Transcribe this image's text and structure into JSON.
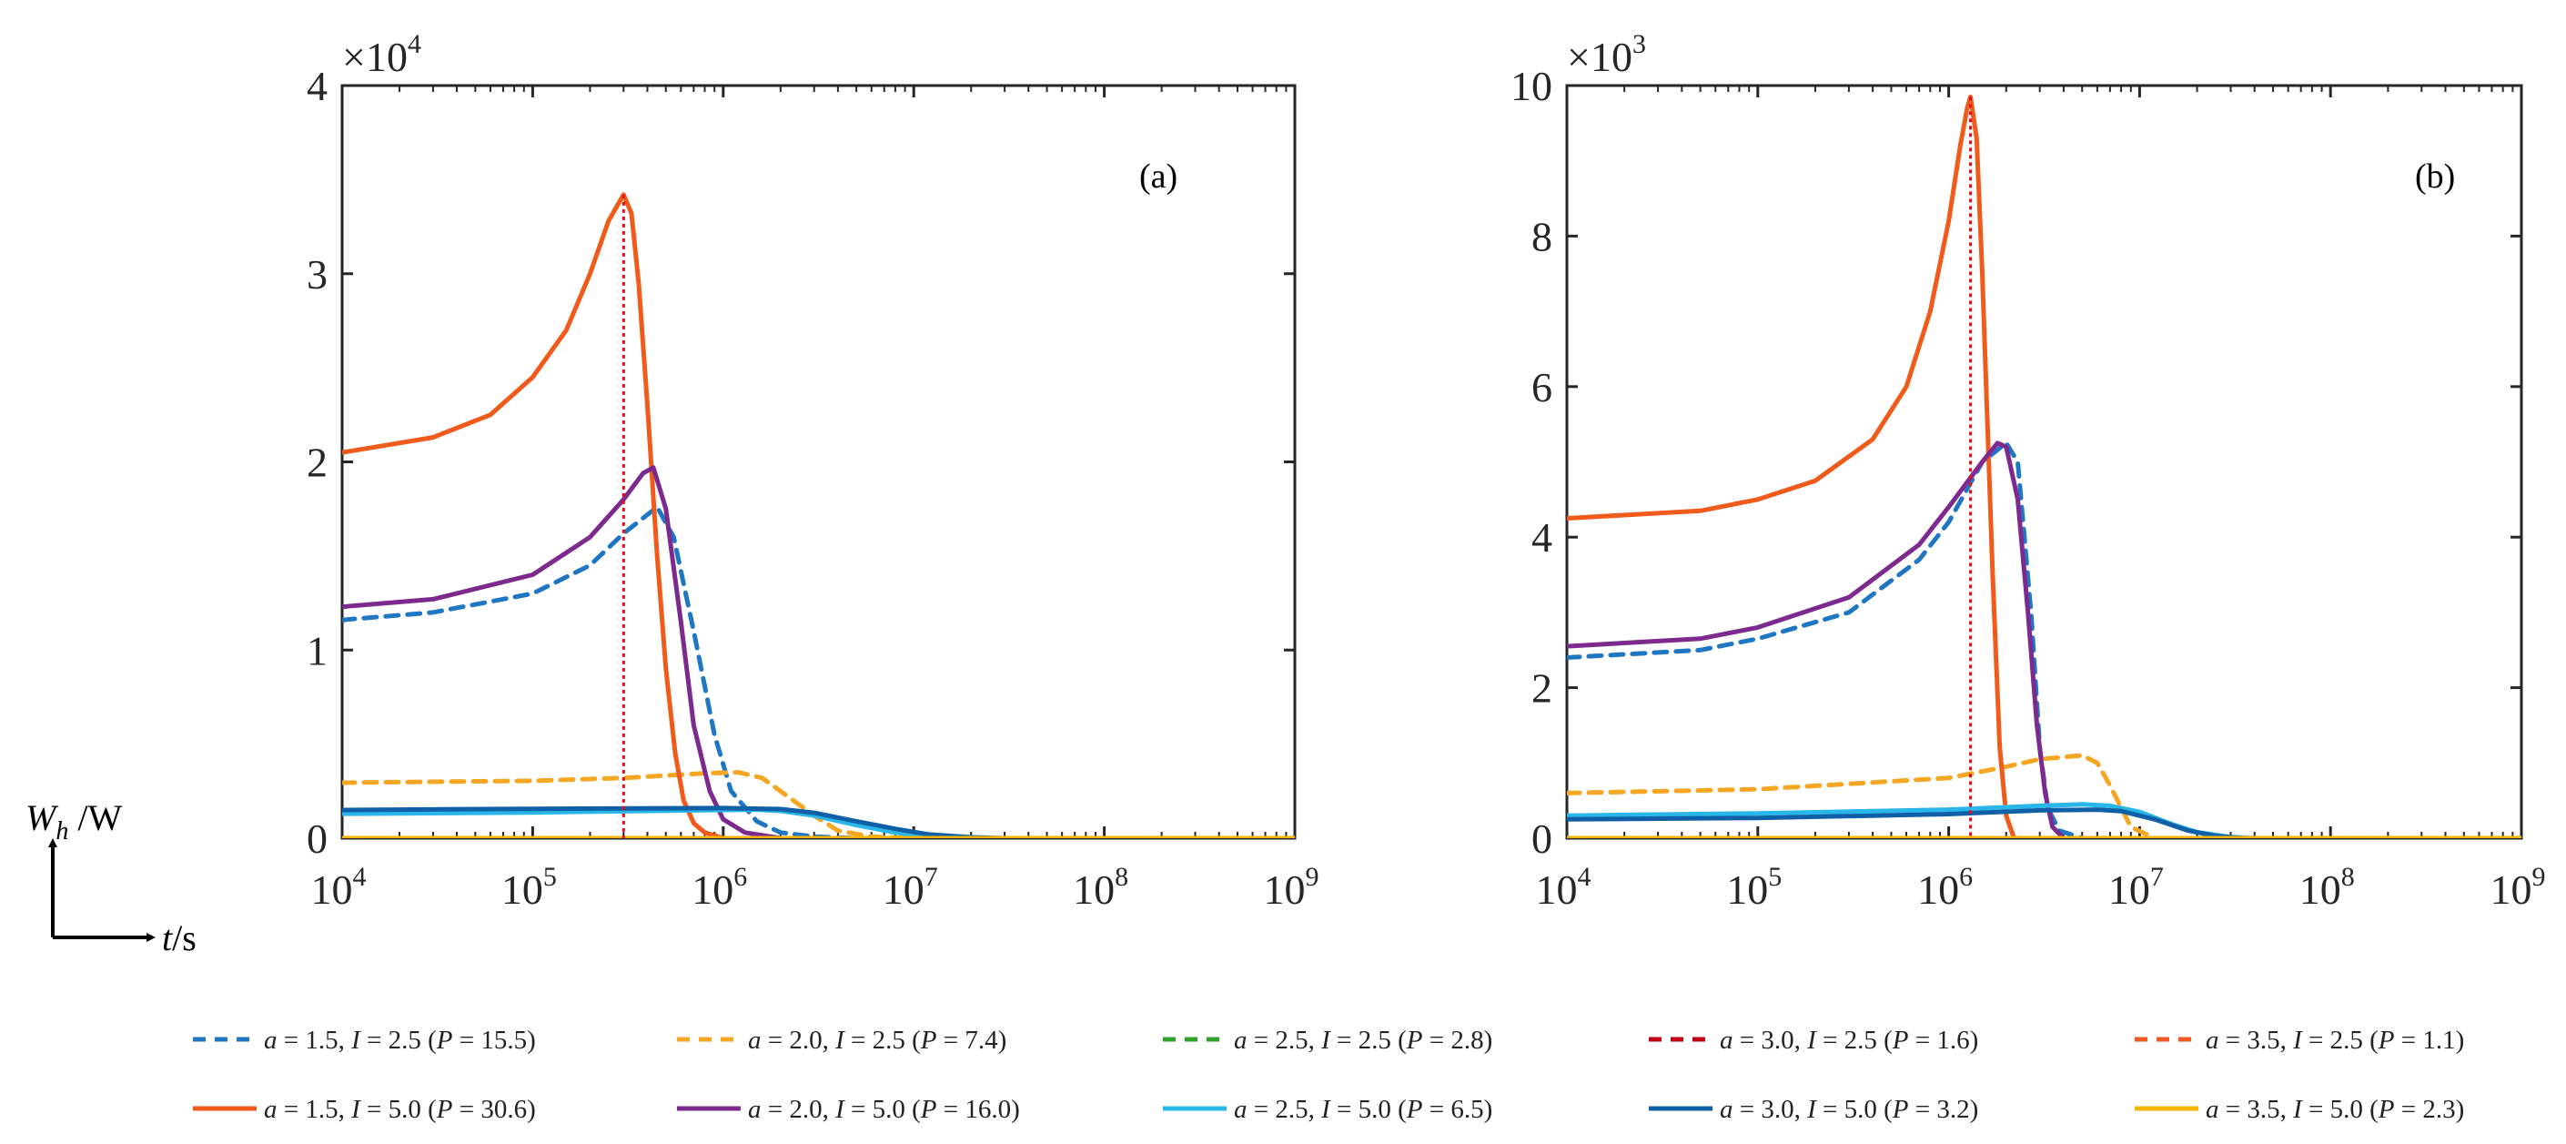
{
  "chart_data": {
    "type": "line",
    "x_axis": {
      "scale": "log",
      "xlim": [
        10000,
        1000000000
      ],
      "tick_values": [
        10000,
        100000,
        1000000,
        10000000,
        100000000,
        1000000000
      ],
      "tick_labels": [
        {
          "base": "10",
          "exp": "4"
        },
        {
          "base": "10",
          "exp": "5"
        },
        {
          "base": "10",
          "exp": "6"
        },
        {
          "base": "10",
          "exp": "7"
        },
        {
          "base": "10",
          "exp": "8"
        },
        {
          "base": "10",
          "exp": "9"
        }
      ]
    },
    "axis_labels": {
      "y": {
        "main": "W",
        "sub": "h",
        "unit": " /W"
      },
      "x": {
        "main": "t",
        "unit": "/s"
      }
    },
    "series_styles": [
      {
        "name": "a = 1.5, I = 2.5 (P = 15.5)",
        "color": "#1f77c4",
        "dash": true
      },
      {
        "name": "a = 2.0, I = 2.5 (P = 7.4)",
        "color": "#f5a623",
        "dash": true
      },
      {
        "name": "a = 2.5, I = 2.5 (P = 2.8)",
        "color": "#33a02c",
        "dash": true
      },
      {
        "name": "a = 3.0, I = 2.5 (P = 1.6)",
        "color": "#c00010",
        "dash": true
      },
      {
        "name": "a = 3.5, I = 2.5 (P = 1.1)",
        "color": "#f05a28",
        "dash": true
      },
      {
        "name": "a = 1.5, I = 5.0 (P = 30.6)",
        "color": "#f05a1a",
        "dash": false
      },
      {
        "name": "a = 2.0, I = 5.0 (P = 16.0)",
        "color": "#7d2a8e",
        "dash": false
      },
      {
        "name": "a = 2.5, I = 5.0 (P = 6.5)",
        "color": "#29b6e8",
        "dash": false
      },
      {
        "name": "a = 3.0, I = 5.0 (P = 3.2)",
        "color": "#1060a8",
        "dash": false
      },
      {
        "name": "a = 3.5, I = 5.0 (P = 2.3)",
        "color": "#f7b500",
        "dash": false
      }
    ],
    "legend": {
      "placement": "bottom",
      "rows": [
        [
          {
            "a": "1.5",
            "I": "2.5",
            "P": "15.5"
          },
          {
            "a": "2.0",
            "I": "2.5",
            "P": "7.4"
          },
          {
            "a": "2.5",
            "I": "2.5",
            "P": "2.8"
          },
          {
            "a": "3.0",
            "I": "2.5",
            "P": "1.6"
          },
          {
            "a": "3.5",
            "I": "2.5",
            "P": "1.1"
          }
        ],
        [
          {
            "a": "1.5",
            "I": "5.0",
            "P": "30.6"
          },
          {
            "a": "2.0",
            "I": "5.0",
            "P": "16.0"
          },
          {
            "a": "2.5",
            "I": "5.0",
            "P": "6.5"
          },
          {
            "a": "3.0",
            "I": "5.0",
            "P": "3.2"
          },
          {
            "a": "3.5",
            "I": "5.0",
            "P": "2.3"
          }
        ]
      ]
    },
    "panels": [
      {
        "label": "(a)",
        "ylim": [
          0,
          40000
        ],
        "y_ticks": [
          0,
          10000,
          20000,
          30000,
          40000
        ],
        "y_tick_labels": [
          "0",
          "1",
          "2",
          "3",
          "4"
        ],
        "y_multiplier": {
          "base": "×10",
          "exp": "4"
        },
        "marker_line": {
          "x": 300000,
          "y": 34200,
          "color": "#e0101a"
        },
        "series": [
          {
            "name": "a = 1.5, I = 2.5 (P = 15.5)",
            "x": [
              10000,
              30000,
              100000,
              200000,
              300000,
              450000,
              550000,
              700000,
              900000,
              1100000,
              1500000,
              2000000,
              3000000,
              5000000
            ],
            "y": [
              11600,
              12000,
              13000,
              14500,
              16200,
              17600,
              16000,
              11000,
              5500,
              2500,
              900,
              300,
              80,
              0
            ]
          },
          {
            "name": "a = 2.0, I = 2.5 (P = 7.4)",
            "x": [
              10000,
              100000,
              300000,
              800000,
              1200000,
              1600000,
              2000000,
              3000000,
              4000000,
              6000000,
              10000000
            ],
            "y": [
              2950,
              3050,
              3200,
              3450,
              3500,
              3200,
              2500,
              1200,
              400,
              80,
              0
            ]
          },
          {
            "name": "a = 2.5, I = 2.5 (P = 2.8)",
            "x": [
              10000,
              1000000,
              5000000,
              20000000
            ],
            "y": [
              0,
              0,
              0,
              0
            ]
          },
          {
            "name": "a = 3.0, I = 2.5 (P = 1.6)",
            "x": [
              10000,
              1000000,
              5000000,
              20000000
            ],
            "y": [
              0,
              0,
              0,
              0
            ]
          },
          {
            "name": "a = 3.5, I = 2.5 (P = 1.1)",
            "x": [
              10000,
              1000000,
              5000000,
              20000000
            ],
            "y": [
              0,
              0,
              0,
              0
            ]
          },
          {
            "name": "a = 1.5, I = 5.0 (P = 30.6)",
            "x": [
              10000,
              30000,
              60000,
              100000,
              150000,
              200000,
              250000,
              300000,
              330000,
              360000,
              400000,
              450000,
              500000,
              560000,
              620000,
              700000,
              800000,
              1000000
            ],
            "y": [
              20500,
              21300,
              22500,
              24500,
              27000,
              30000,
              32800,
              34200,
              33200,
              29500,
              23000,
              15000,
              9000,
              4500,
              2000,
              800,
              300,
              0
            ]
          },
          {
            "name": "a = 2.0, I = 5.0 (P = 16.0)",
            "x": [
              10000,
              30000,
              100000,
              200000,
              300000,
              380000,
              430000,
              500000,
              600000,
              700000,
              850000,
              1000000,
              1300000,
              2000000
            ],
            "y": [
              12300,
              12700,
              14000,
              16000,
              18000,
              19400,
              19700,
              17500,
              11500,
              6000,
              2500,
              1000,
              300,
              0
            ]
          },
          {
            "name": "a = 2.5, I = 5.0 (P = 6.5)",
            "x": [
              10000,
              100000,
              1000000,
              1500000,
              2000000,
              3000000,
              5000000,
              8000000,
              12000000,
              20000000,
              30000000
            ],
            "y": [
              1300,
              1370,
              1500,
              1520,
              1450,
              1200,
              700,
              300,
              100,
              20,
              0
            ]
          },
          {
            "name": "a = 3.0, I = 5.0 (P = 3.2)",
            "x": [
              10000,
              100000,
              1000000,
              2000000,
              3000000,
              5000000,
              8000000,
              12000000,
              20000000,
              30000000
            ],
            "y": [
              1500,
              1560,
              1600,
              1550,
              1350,
              900,
              500,
              200,
              50,
              0
            ]
          },
          {
            "name": "a = 3.5, I = 5.0 (P = 2.3)",
            "x": [
              10000,
              1000000,
              10000000,
              100000000,
              1000000000
            ],
            "y": [
              0,
              0,
              0,
              0,
              0
            ]
          }
        ]
      },
      {
        "label": "(b)",
        "ylim": [
          0,
          10000
        ],
        "y_ticks": [
          0,
          2000,
          4000,
          6000,
          8000,
          10000
        ],
        "y_tick_labels": [
          "0",
          "2",
          "4",
          "6",
          "8",
          "10"
        ],
        "y_multiplier": {
          "base": "×10",
          "exp": "3"
        },
        "marker_line": {
          "x": 1300000,
          "y": 9850,
          "color": "#e0101a"
        },
        "series": [
          {
            "name": "a = 1.5, I = 2.5 (P = 15.5)",
            "x": [
              10000,
              50000,
              100000,
              300000,
              700000,
              1000000,
              1500000,
              2000000,
              2300000,
              2700000,
              3000000,
              3300000,
              3800000,
              5000000
            ],
            "y": [
              2400,
              2500,
              2650,
              3000,
              3700,
              4200,
              5000,
              5250,
              5000,
              3000,
              1200,
              400,
              100,
              0
            ]
          },
          {
            "name": "a = 2.0, I = 2.5 (P = 7.4)",
            "x": [
              10000,
              100000,
              1000000,
              2000000,
              3000000,
              5000000,
              6000000,
              7000000,
              9000000,
              12000000
            ],
            "y": [
              600,
              650,
              800,
              950,
              1050,
              1100,
              1000,
              700,
              150,
              0
            ]
          },
          {
            "name": "a = 2.5, I = 2.5 (P = 2.8)",
            "x": [
              10000,
              1000000,
              10000000,
              50000000
            ],
            "y": [
              0,
              0,
              0,
              0
            ]
          },
          {
            "name": "a = 3.0, I = 2.5 (P = 1.6)",
            "x": [
              10000,
              1000000,
              10000000,
              50000000
            ],
            "y": [
              0,
              0,
              0,
              0
            ]
          },
          {
            "name": "a = 3.5, I = 2.5 (P = 1.1)",
            "x": [
              10000,
              1000000,
              10000000,
              50000000
            ],
            "y": [
              0,
              0,
              0,
              0
            ]
          },
          {
            "name": "a = 1.5, I = 5.0 (P = 30.6)",
            "x": [
              10000,
              50000,
              100000,
              200000,
              400000,
              600000,
              800000,
              1000000,
              1150000,
              1250000,
              1300000,
              1400000,
              1500000,
              1700000,
              1850000,
              2000000,
              2200000
            ],
            "y": [
              4250,
              4350,
              4500,
              4750,
              5300,
              6000,
              7000,
              8200,
              9200,
              9700,
              9850,
              9300,
              7500,
              3500,
              1200,
              300,
              0
            ]
          },
          {
            "name": "a = 2.0, I = 5.0 (P = 16.0)",
            "x": [
              10000,
              50000,
              100000,
              300000,
              700000,
              1000000,
              1500000,
              1800000,
              2000000,
              2300000,
              2600000,
              2900000,
              3200000,
              3500000,
              4000000
            ],
            "y": [
              2550,
              2650,
              2800,
              3200,
              3900,
              4400,
              5000,
              5250,
              5200,
              4500,
              3000,
              1500,
              600,
              150,
              0
            ]
          },
          {
            "name": "a = 2.5, I = 5.0 (P = 6.5)",
            "x": [
              10000,
              100000,
              1000000,
              3000000,
              5000000,
              7000000,
              10000000,
              15000000,
              20000000,
              30000000,
              40000000
            ],
            "y": [
              300,
              330,
              380,
              430,
              450,
              430,
              350,
              180,
              80,
              15,
              0
            ]
          },
          {
            "name": "a = 3.0, I = 5.0 (P = 3.2)",
            "x": [
              10000,
              100000,
              1000000,
              3000000,
              6000000,
              8000000,
              12000000,
              18000000,
              25000000,
              35000000
            ],
            "y": [
              250,
              270,
              320,
              370,
              380,
              360,
              250,
              100,
              30,
              0
            ]
          },
          {
            "name": "a = 3.5, I = 5.0 (P = 2.3)",
            "x": [
              10000,
              1000000,
              10000000,
              100000000,
              1000000000
            ],
            "y": [
              0,
              0,
              0,
              0,
              0
            ]
          }
        ]
      }
    ]
  }
}
